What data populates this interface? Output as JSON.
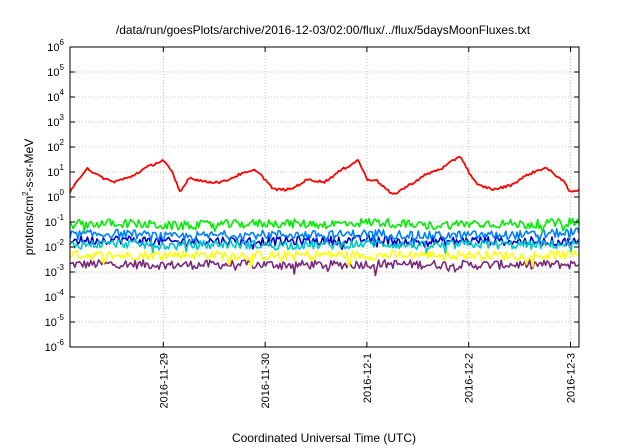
{
  "chart_data": {
    "type": "line",
    "title": "/data/run/goesPlots/archive/2016-12-03/02:00/flux/../flux/5daysMoonFluxes.txt",
    "xlabel": "Coordinated Universal Time (UTC)",
    "ylabel_main": "protons/cm",
    "ylabel_sup": "2",
    "ylabel_tail": "-s-sr-MeV",
    "y_scale": "log",
    "ylim": [
      1e-06,
      1000000.0
    ],
    "y_ticks": [
      {
        "exp": -6
      },
      {
        "exp": -5
      },
      {
        "exp": -4
      },
      {
        "exp": -3
      },
      {
        "exp": -2
      },
      {
        "exp": -1
      },
      {
        "exp": 0
      },
      {
        "exp": 1
      },
      {
        "exp": 2
      },
      {
        "exp": 3
      },
      {
        "exp": 4
      },
      {
        "exp": 5
      },
      {
        "exp": 6
      }
    ],
    "tick_base": "10",
    "xlim": [
      "2016-11-28T02:00",
      "2016-12-03T02:00"
    ],
    "x_ticks": [
      {
        "label": "2016-11-29",
        "at": "2016-11-29T00:00"
      },
      {
        "label": "2016-11-30",
        "at": "2016-11-30T00:00"
      },
      {
        "label": "2016-12-1",
        "at": "2016-12-01T00:00"
      },
      {
        "label": "2016-12-2",
        "at": "2016-12-02T00:00"
      },
      {
        "label": "2016-12-3",
        "at": "2016-12-03T00:00"
      }
    ],
    "grid": true,
    "legend": "none",
    "series": [
      {
        "color": "#ff0000",
        "x": [
          "2016-11-28T02:00",
          "2016-11-28T04:00",
          "2016-11-28T06:00",
          "2016-11-28T08:00",
          "2016-11-28T12:00",
          "2016-11-28T16:00",
          "2016-11-28T20:00",
          "2016-11-29T00:00",
          "2016-11-29T02:00",
          "2016-11-29T04:00",
          "2016-11-29T06:00",
          "2016-11-29T10:00",
          "2016-11-29T14:00",
          "2016-11-29T18:00",
          "2016-11-29T22:00",
          "2016-11-30T02:00",
          "2016-11-30T06:00",
          "2016-11-30T10:00",
          "2016-11-30T14:00",
          "2016-11-30T18:00",
          "2016-11-30T22:00",
          "2016-12-01T00:00",
          "2016-12-01T02:00",
          "2016-12-01T04:00",
          "2016-12-01T06:00",
          "2016-12-01T10:00",
          "2016-12-01T14:00",
          "2016-12-01T18:00",
          "2016-12-01T22:00",
          "2016-12-02T00:00",
          "2016-12-02T02:00",
          "2016-12-02T06:00",
          "2016-12-02T10:00",
          "2016-12-02T14:00",
          "2016-12-02T18:00",
          "2016-12-02T22:00",
          "2016-12-03T00:00",
          "2016-12-03T02:00"
        ],
        "values": [
          1.5,
          5,
          15,
          8,
          4,
          6,
          15,
          30,
          10,
          1.5,
          6,
          4,
          4,
          8,
          12,
          2,
          2,
          5,
          4,
          12,
          30,
          5,
          5,
          2.5,
          1.2,
          3,
          8,
          15,
          45,
          10,
          3,
          2,
          3,
          8,
          15,
          5,
          1.5,
          2
        ]
      },
      {
        "color": "#00ee00",
        "x": [
          "2016-11-28T02:00",
          "2016-11-28T14:00",
          "2016-11-29T02:00",
          "2016-11-29T14:00",
          "2016-11-30T02:00",
          "2016-11-30T14:00",
          "2016-12-01T02:00",
          "2016-12-01T14:00",
          "2016-12-02T02:00",
          "2016-12-02T14:00",
          "2016-12-03T02:00"
        ],
        "values": [
          0.08,
          0.09,
          0.07,
          0.08,
          0.09,
          0.08,
          0.1,
          0.07,
          0.09,
          0.08,
          0.1
        ]
      },
      {
        "color": "#0080ff",
        "x": [
          "2016-11-28T02:00",
          "2016-11-28T14:00",
          "2016-11-29T02:00",
          "2016-11-29T14:00",
          "2016-11-30T02:00",
          "2016-11-30T14:00",
          "2016-12-01T02:00",
          "2016-12-01T14:00",
          "2016-12-02T02:00",
          "2016-12-02T14:00",
          "2016-12-03T02:00"
        ],
        "values": [
          0.03,
          0.035,
          0.025,
          0.03,
          0.032,
          0.03,
          0.035,
          0.028,
          0.03,
          0.03,
          0.04
        ]
      },
      {
        "color": "#00c8c8",
        "x": [
          "2016-11-28T02:00",
          "2016-11-28T14:00",
          "2016-11-29T02:00",
          "2016-11-29T14:00",
          "2016-11-30T02:00",
          "2016-11-30T14:00",
          "2016-12-01T02:00",
          "2016-12-01T14:00",
          "2016-12-02T02:00",
          "2016-12-02T14:00",
          "2016-12-03T02:00"
        ],
        "values": [
          0.012,
          0.014,
          0.011,
          0.013,
          0.012,
          0.012,
          0.014,
          0.011,
          0.013,
          0.012,
          0.013
        ]
      },
      {
        "color": "#0000cc",
        "x": [
          "2016-11-28T02:00",
          "2016-11-28T14:00",
          "2016-11-29T02:00",
          "2016-11-29T14:00",
          "2016-11-30T02:00",
          "2016-11-30T14:00",
          "2016-12-01T02:00",
          "2016-12-01T14:00",
          "2016-12-02T02:00",
          "2016-12-02T14:00",
          "2016-12-03T02:00"
        ],
        "values": [
          0.018,
          0.02,
          0.016,
          0.018,
          0.017,
          0.018,
          0.02,
          0.016,
          0.018,
          0.017,
          0.016
        ]
      },
      {
        "color": "#ffff00",
        "x": [
          "2016-11-28T02:00",
          "2016-11-28T14:00",
          "2016-11-29T02:00",
          "2016-11-29T14:00",
          "2016-11-30T02:00",
          "2016-11-30T14:00",
          "2016-12-01T02:00",
          "2016-12-01T14:00",
          "2016-12-02T02:00",
          "2016-12-02T14:00",
          "2016-12-03T02:00"
        ],
        "values": [
          0.005,
          0.0045,
          0.005,
          0.0048,
          0.0045,
          0.005,
          0.0045,
          0.005,
          0.0048,
          0.0045,
          0.005
        ]
      },
      {
        "color": "#7a2a7a",
        "x": [
          "2016-11-28T02:00",
          "2016-11-28T14:00",
          "2016-11-29T02:00",
          "2016-11-29T14:00",
          "2016-11-30T02:00",
          "2016-11-30T14:00",
          "2016-12-01T02:00",
          "2016-12-01T14:00",
          "2016-12-02T02:00",
          "2016-12-02T14:00",
          "2016-12-03T02:00"
        ],
        "values": [
          0.002,
          0.0021,
          0.0019,
          0.002,
          0.002,
          0.0019,
          0.0021,
          0.002,
          0.0019,
          0.002,
          0.002
        ]
      }
    ]
  }
}
